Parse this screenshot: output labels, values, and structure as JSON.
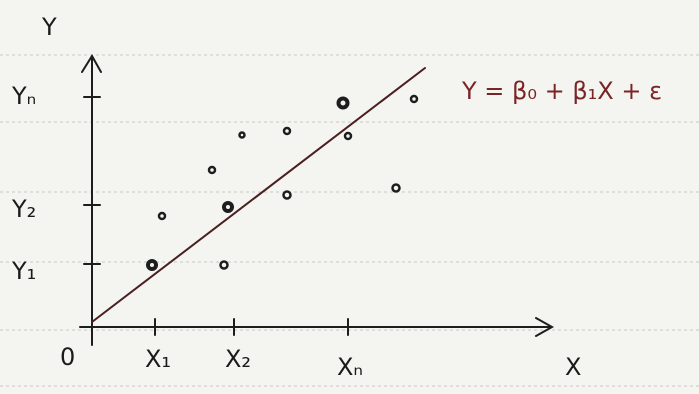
{
  "axes": {
    "y_label": "Y",
    "x_label": "X",
    "origin": "0",
    "y_ticks": [
      "Yₙ",
      "Y₂",
      "Y₁"
    ],
    "x_ticks": [
      "X₁",
      "X₂",
      "Xₙ"
    ]
  },
  "equation": "Y = β₀ + β₁X + ε"
}
